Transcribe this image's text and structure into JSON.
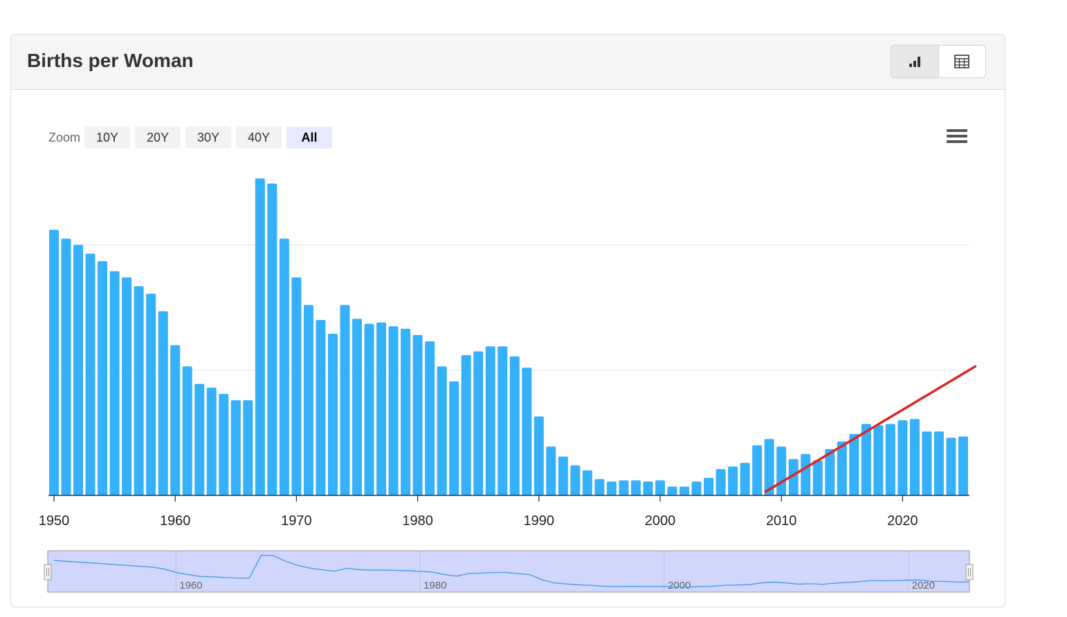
{
  "header": {
    "title": "Births per Woman"
  },
  "view_toggle": {
    "chart_icon": "bar-chart-icon",
    "table_icon": "table-icon",
    "active": "chart"
  },
  "zoom": {
    "label": "Zoom",
    "buttons": [
      "10Y",
      "20Y",
      "30Y",
      "40Y",
      "All"
    ],
    "active": "All"
  },
  "menu_icon": "hamburger-menu-icon",
  "chart_data": {
    "type": "bar",
    "title": "",
    "xlabel": "",
    "ylabel": "",
    "x_ticks": [
      1950,
      1960,
      1970,
      1980,
      1990,
      2000,
      2010,
      2020
    ],
    "ylim": [
      1.0,
      3.5
    ],
    "grid": true,
    "color": "#35b0fb",
    "trend_line_color": "#dc2626",
    "x": [
      1950,
      1951,
      1952,
      1953,
      1954,
      1955,
      1956,
      1957,
      1958,
      1959,
      1960,
      1961,
      1962,
      1963,
      1964,
      1965,
      1966,
      1967,
      1968,
      1969,
      1970,
      1971,
      1972,
      1973,
      1974,
      1975,
      1976,
      1977,
      1978,
      1979,
      1980,
      1981,
      1982,
      1983,
      1984,
      1985,
      1986,
      1987,
      1988,
      1989,
      1990,
      1991,
      1992,
      1993,
      1994,
      1995,
      1996,
      1997,
      1998,
      1999,
      2000,
      2001,
      2002,
      2003,
      2004,
      2005,
      2006,
      2007,
      2008,
      2009,
      2010,
      2011,
      2012,
      2013,
      2014,
      2015,
      2016,
      2017,
      2018,
      2019,
      2020,
      2021,
      2022,
      2023,
      2024,
      2025
    ],
    "values": [
      3.12,
      3.05,
      3.0,
      2.93,
      2.87,
      2.79,
      2.74,
      2.67,
      2.61,
      2.47,
      2.2,
      2.03,
      1.89,
      1.86,
      1.81,
      1.76,
      1.76,
      3.53,
      3.49,
      3.05,
      2.74,
      2.52,
      2.4,
      2.29,
      2.52,
      2.41,
      2.37,
      2.38,
      2.35,
      2.33,
      2.28,
      2.23,
      2.03,
      1.91,
      2.12,
      2.15,
      2.19,
      2.19,
      2.11,
      2.02,
      1.63,
      1.39,
      1.31,
      1.24,
      1.2,
      1.13,
      1.11,
      1.12,
      1.12,
      1.11,
      1.12,
      1.07,
      1.07,
      1.11,
      1.14,
      1.21,
      1.23,
      1.26,
      1.4,
      1.45,
      1.39,
      1.29,
      1.33,
      1.28,
      1.37,
      1.43,
      1.49,
      1.57,
      1.56,
      1.57,
      1.6,
      1.61,
      1.51,
      1.51,
      1.46,
      1.47
    ],
    "trend_line": {
      "from": [
        2008.7,
        1.03
      ],
      "to": [
        2026.0,
        2.03
      ]
    },
    "navigator": {
      "labels": [
        1960,
        1980,
        2000,
        2020
      ]
    }
  }
}
